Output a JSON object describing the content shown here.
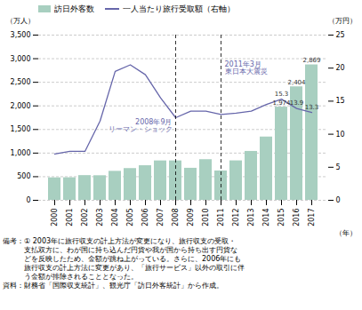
{
  "chart_data": {
    "type": "bar",
    "categories": [
      "2000",
      "2001",
      "2002",
      "2003",
      "2004",
      "2005",
      "2006",
      "2007",
      "2008",
      "2009",
      "2010",
      "2011",
      "2012",
      "2013",
      "2014",
      "2015",
      "2016",
      "2017"
    ],
    "xlabel": "（年）",
    "ylabel": "（万人）",
    "y2label": "（万円）",
    "series": [
      {
        "name": "訪日外客数",
        "type": "bar",
        "color": "#a8cfc0",
        "values": [
          476,
          478,
          524,
          521,
          614,
          673,
          733,
          835,
          835,
          679,
          861,
          622,
          836,
          1036,
          1341,
          1974,
          2404,
          2869
        ],
        "data_labels": true,
        "value_labels": [
          null,
          null,
          null,
          null,
          null,
          null,
          null,
          null,
          null,
          null,
          null,
          null,
          null,
          null,
          null,
          "1,974",
          "2,404",
          "2,869"
        ]
      },
      {
        "name": "一人当たり旅行受取額（右軸）",
        "type": "line",
        "axis": "y2",
        "color": "#6666aa",
        "values": [
          7.0,
          7.4,
          7.4,
          12.0,
          19.5,
          20.5,
          19.0,
          15.5,
          12.5,
          13.5,
          13.5,
          13.0,
          13.2,
          13.5,
          14.5,
          15.3,
          13.9,
          13.3
        ],
        "data_labels": true,
        "value_labels": [
          null,
          null,
          null,
          null,
          null,
          null,
          null,
          null,
          null,
          null,
          null,
          null,
          null,
          null,
          null,
          "15.3",
          "13.9",
          "13.3"
        ]
      }
    ],
    "ylim": [
      0,
      3500
    ],
    "yticks": [
      0,
      500,
      {
        "value": 1000,
        "label": "1,000"
      },
      {
        "value": 1500,
        "label": "1,500"
      },
      {
        "value": 2000,
        "label": "2,000"
      },
      {
        "value": 2500,
        "label": "2,500"
      },
      {
        "value": 3000,
        "label": "3,000"
      },
      {
        "value": 3500,
        "label": "3,500"
      }
    ],
    "y2lim": [
      0,
      25
    ],
    "y2ticks": [
      0,
      5,
      10,
      15,
      20,
      25
    ],
    "grid": true,
    "legend": "upper left",
    "annotations": [
      {
        "x": "2008",
        "text": [
          "2008年9月",
          "リーマン・ショック"
        ],
        "color": "#6666aa"
      },
      {
        "x": "2011",
        "text": [
          "2011年3月",
          "東日本大震災"
        ],
        "color": "#6666aa"
      }
    ],
    "notes": [
      "備考：① 2003年に旅行収支の計上方法が変更になり、旅行収支の受取・",
      "　　　支払双方に、わが国に持ち込んだ円貨や我が国から持ち出す円貨な",
      "　　　どを反映したため、金額が跳ね上がっている。さらに、2006年にも",
      "　　　旅行収支の計上方法に変更があり、「旅行サービス」以外の取引に伴",
      "　　　う金額が排除されることとなった。"
    ],
    "source": "資料：財務省「国際収支統計」、観光庁「訪日外客統計」から作成。"
  }
}
